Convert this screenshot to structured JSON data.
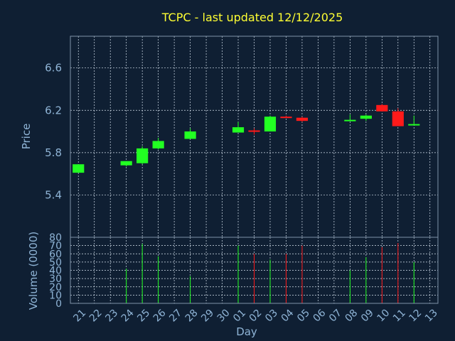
{
  "chart_data": {
    "type": "candlestick",
    "title": "TCPC - last updated 12/12/2025",
    "price_ylabel": "Price",
    "volume_ylabel": "Volume (0000)",
    "xlabel": "Day",
    "price_ylim": [
      5.0,
      6.9
    ],
    "price_ticks": [
      "6.6",
      "6.2",
      "5.8",
      "5.4"
    ],
    "volume_ylim": [
      0,
      80
    ],
    "volume_ticks": [
      "80",
      "70",
      "60",
      "50",
      "40",
      "30",
      "20",
      "10",
      "0"
    ],
    "x_labels": [
      "21",
      "22",
      "23",
      "24",
      "25",
      "26",
      "27",
      "28",
      "29",
      "30",
      "01",
      "02",
      "03",
      "04",
      "05",
      "06",
      "07",
      "08",
      "09",
      "10",
      "11",
      "12",
      "13"
    ],
    "grid": true,
    "up_color": "#22ff22",
    "down_color": "#ff1a1a",
    "candles": [
      {
        "day": "21",
        "open": 5.61,
        "close": 5.69,
        "high": 5.69,
        "low": 5.61,
        "volume": 0
      },
      {
        "day": "24",
        "open": 5.68,
        "close": 5.72,
        "high": 5.72,
        "low": 5.67,
        "volume": 42
      },
      {
        "day": "25",
        "open": 5.7,
        "close": 5.84,
        "high": 5.86,
        "low": 5.69,
        "volume": 72
      },
      {
        "day": "26",
        "open": 5.84,
        "close": 5.91,
        "high": 5.94,
        "low": 5.83,
        "volume": 57
      },
      {
        "day": "28",
        "open": 5.93,
        "close": 6.0,
        "high": 6.03,
        "low": 5.93,
        "volume": 33
      },
      {
        "day": "01",
        "open": 5.99,
        "close": 6.04,
        "high": 6.09,
        "low": 5.99,
        "volume": 70
      },
      {
        "day": "02",
        "open": 6.01,
        "close": 6.0,
        "high": 6.03,
        "low": 5.97,
        "volume": 60
      },
      {
        "day": "03",
        "open": 6.0,
        "close": 6.14,
        "high": 6.15,
        "low": 6.0,
        "volume": 53
      },
      {
        "day": "04",
        "open": 6.14,
        "close": 6.13,
        "high": 6.15,
        "low": 6.13,
        "volume": 60
      },
      {
        "day": "05",
        "open": 6.13,
        "close": 6.1,
        "high": 6.14,
        "low": 6.09,
        "volume": 70
      },
      {
        "day": "08",
        "open": 6.11,
        "close": 6.11,
        "high": 6.16,
        "low": 6.11,
        "volume": 40
      },
      {
        "day": "09",
        "open": 6.12,
        "close": 6.15,
        "high": 6.16,
        "low": 6.1,
        "volume": 56
      },
      {
        "day": "10",
        "open": 6.25,
        "close": 6.19,
        "high": 6.26,
        "low": 6.19,
        "volume": 68
      },
      {
        "day": "11",
        "open": 6.19,
        "close": 6.05,
        "high": 6.22,
        "low": 6.05,
        "volume": 73
      },
      {
        "day": "12",
        "open": 6.06,
        "close": 6.07,
        "high": 6.15,
        "low": 6.06,
        "volume": 50
      }
    ]
  }
}
